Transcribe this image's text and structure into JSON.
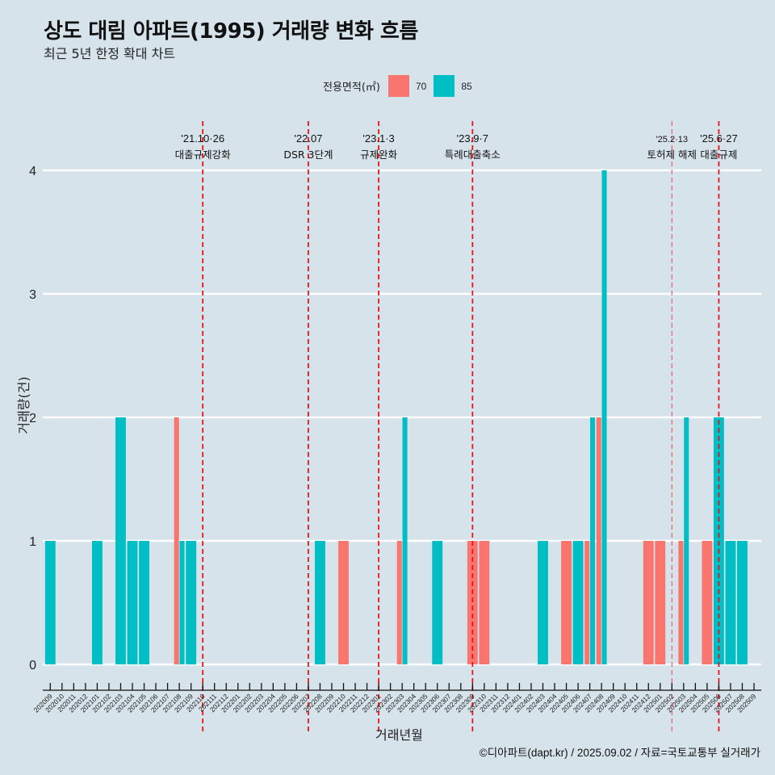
{
  "header": {
    "title": "상도 대림 아파트(1995) 거래량 변화 흐름",
    "subtitle": "최근 5년 한정 확대 차트"
  },
  "legend": {
    "title": "전용면적(㎡)",
    "items": [
      {
        "label": "70",
        "color": "#f8766d"
      },
      {
        "label": "85",
        "color": "#00bfc4"
      }
    ]
  },
  "caption": "©디아파트(dapt.kr) / 2025.09.02 / 자료=국토교통부 실거래가",
  "chart_data": {
    "type": "bar",
    "title": "상도 대림 아파트(1995) 거래량 변화 흐름",
    "subtitle": "최근 5년 한정 확대 차트",
    "xlabel": "거래년월",
    "ylabel": "거래량(건)",
    "ylim": [
      0,
      4
    ],
    "yticks": [
      "0",
      "1",
      "2",
      "3",
      "4"
    ],
    "grid": "horizontal",
    "legend_position": "top",
    "categories": [
      "202009",
      "202010",
      "202011",
      "202012",
      "202101",
      "202102",
      "202103",
      "202104",
      "202105",
      "202106",
      "202107",
      "202108",
      "202109",
      "202110",
      "202111",
      "202112",
      "202201",
      "202202",
      "202203",
      "202204",
      "202205",
      "202206",
      "202207",
      "202208",
      "202209",
      "202210",
      "202211",
      "202212",
      "202301",
      "202302",
      "202303",
      "202304",
      "202305",
      "202306",
      "202307",
      "202308",
      "202309",
      "202310",
      "202311",
      "202312",
      "202401",
      "202402",
      "202403",
      "202404",
      "202405",
      "202406",
      "202407",
      "202408",
      "202409",
      "202410",
      "202411",
      "202412",
      "202501",
      "202502",
      "202503",
      "202504",
      "202505",
      "202506",
      "202507",
      "202508",
      "202509"
    ],
    "series": [
      {
        "name": "70",
        "color": "#f8766d",
        "points": [
          {
            "x": "202108",
            "y": 2
          },
          {
            "x": "202210",
            "y": 1
          },
          {
            "x": "202303",
            "y": 1
          },
          {
            "x": "202309",
            "y": 1
          },
          {
            "x": "202310",
            "y": 1
          },
          {
            "x": "202405",
            "y": 1
          },
          {
            "x": "202407",
            "y": 1
          },
          {
            "x": "202408",
            "y": 2
          },
          {
            "x": "202412",
            "y": 1
          },
          {
            "x": "202501",
            "y": 1
          },
          {
            "x": "202503",
            "y": 1
          },
          {
            "x": "202505",
            "y": 1
          }
        ]
      },
      {
        "name": "85",
        "color": "#00bfc4",
        "points": [
          {
            "x": "202009",
            "y": 1
          },
          {
            "x": "202101",
            "y": 1
          },
          {
            "x": "202103",
            "y": 2
          },
          {
            "x": "202104",
            "y": 1
          },
          {
            "x": "202105",
            "y": 1
          },
          {
            "x": "202108",
            "y": 1
          },
          {
            "x": "202109",
            "y": 1
          },
          {
            "x": "202208",
            "y": 1
          },
          {
            "x": "202303",
            "y": 2
          },
          {
            "x": "202306",
            "y": 1
          },
          {
            "x": "202403",
            "y": 1
          },
          {
            "x": "202406",
            "y": 1
          },
          {
            "x": "202407",
            "y": 2
          },
          {
            "x": "202408",
            "y": 4
          },
          {
            "x": "202503",
            "y": 2
          },
          {
            "x": "202506",
            "y": 2
          },
          {
            "x": "202507",
            "y": 1
          },
          {
            "x": "202508",
            "y": 1
          }
        ]
      }
    ],
    "annotations": [
      {
        "x": "202110",
        "date": "'21.10·26",
        "label": "대출규제강화",
        "style": "strong"
      },
      {
        "x": "202207",
        "date": "'22.07",
        "label": "DSR 3단계",
        "style": "strong"
      },
      {
        "x": "202301",
        "date": "'23.1·3",
        "label": "규제완화",
        "style": "strong"
      },
      {
        "x": "202309",
        "date": "'23.9·7",
        "label": "특례대출축소",
        "style": "strong"
      },
      {
        "x": "202502",
        "date": "'25.2·13",
        "label": "토허제 해제",
        "style": "light"
      },
      {
        "x": "202506",
        "date": "'25.6·27",
        "label": "대출규제",
        "style": "strong"
      }
    ]
  }
}
